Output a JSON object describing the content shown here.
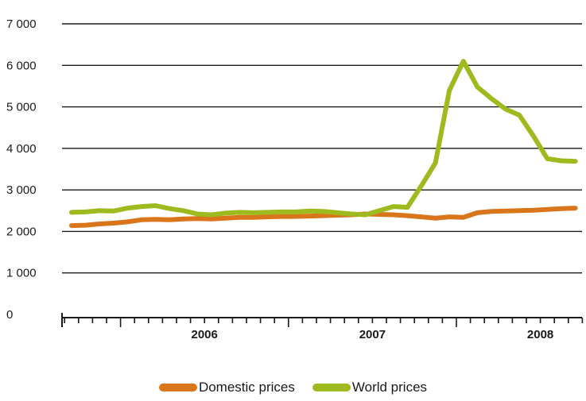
{
  "chart_data": {
    "type": "line",
    "title": "",
    "xlabel": "",
    "ylabel": "",
    "ylim": [
      0,
      7000
    ],
    "y_ticks": [
      0,
      1000,
      2000,
      3000,
      4000,
      5000,
      6000,
      7000
    ],
    "y_tick_labels": [
      "0",
      "1 000",
      "2 000",
      "3 000",
      "4 000",
      "5 000",
      "6 000",
      "7 000"
    ],
    "x_year_labels": [
      "2006",
      "2007",
      "2008"
    ],
    "grid": true,
    "legend_position": "bottom",
    "x_months": [
      "2005-09",
      "2005-10",
      "2005-11",
      "2005-12",
      "2006-01",
      "2006-02",
      "2006-03",
      "2006-04",
      "2006-05",
      "2006-06",
      "2006-07",
      "2006-08",
      "2006-09",
      "2006-10",
      "2006-11",
      "2006-12",
      "2007-01",
      "2007-02",
      "2007-03",
      "2007-04",
      "2007-05",
      "2007-06",
      "2007-07",
      "2007-08",
      "2007-09",
      "2007-10",
      "2007-11",
      "2007-12",
      "2008-01",
      "2008-02",
      "2008-03",
      "2008-04",
      "2008-05",
      "2008-06",
      "2008-07",
      "2008-08",
      "2008-09"
    ],
    "series": [
      {
        "name": "Domestic prices",
        "color": "#d9761b",
        "values": [
          2140,
          2150,
          2180,
          2200,
          2230,
          2280,
          2290,
          2280,
          2300,
          2310,
          2300,
          2320,
          2340,
          2340,
          2350,
          2360,
          2360,
          2370,
          2380,
          2390,
          2400,
          2420,
          2410,
          2400,
          2380,
          2350,
          2320,
          2350,
          2340,
          2450,
          2480,
          2490,
          2500,
          2510,
          2530,
          2550,
          2560
        ]
      },
      {
        "name": "World prices",
        "color": "#9dba1e",
        "values": [
          2460,
          2470,
          2500,
          2490,
          2560,
          2600,
          2620,
          2550,
          2500,
          2420,
          2400,
          2440,
          2460,
          2450,
          2460,
          2470,
          2470,
          2490,
          2480,
          2450,
          2420,
          2400,
          2500,
          2600,
          2580,
          3100,
          3650,
          5400,
          6100,
          5480,
          5200,
          4950,
          4800,
          4300,
          3750,
          3700,
          3690
        ]
      }
    ]
  },
  "legend": {
    "items": [
      {
        "label": "Domestic prices",
        "color": "#d9761b"
      },
      {
        "label": "World prices",
        "color": "#9dba1e"
      }
    ]
  }
}
